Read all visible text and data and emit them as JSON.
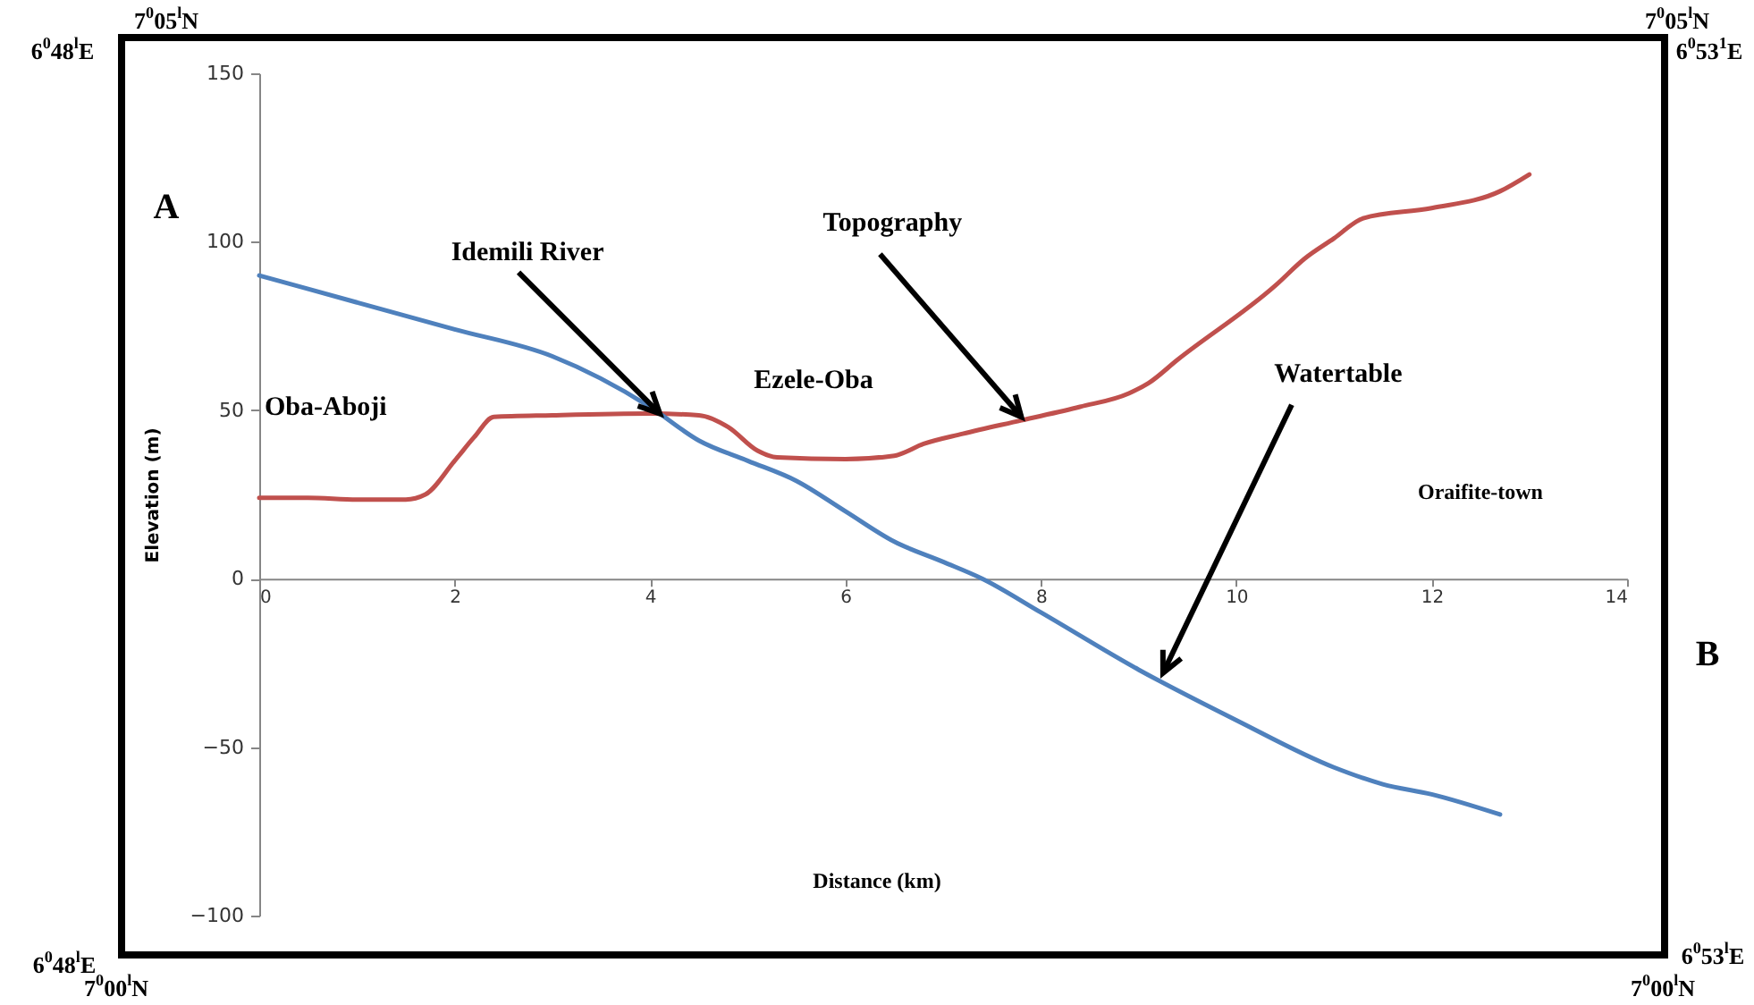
{
  "chart_data": {
    "type": "line",
    "xlabel": "Distance (km)",
    "ylabel": "Elevation  (m)",
    "xlim": [
      0,
      14
    ],
    "ylim": [
      -100,
      150
    ],
    "xticks": [
      0,
      2,
      4,
      6,
      8,
      10,
      12,
      14
    ],
    "yticks": [
      -100,
      -50,
      0,
      50,
      100,
      150
    ],
    "series": [
      {
        "color": "#c0504d",
        "x": [
          0,
          0.5,
          1,
          1.5,
          1.7,
          2.0,
          2.2,
          2.4,
          3,
          4,
          4.5,
          4.8,
          5.1,
          5.3,
          6,
          6.5,
          6.8,
          7.2,
          7.8,
          8.4,
          8.9,
          9.1,
          9.4,
          10.4,
          10.7,
          11,
          11.3,
          12,
          12.7,
          13
        ],
        "values": [
          24,
          24,
          23.5,
          23.5,
          25,
          35,
          42,
          48,
          48.5,
          49,
          48.5,
          45,
          38,
          36,
          35.5,
          36.5,
          40,
          43,
          47,
          51,
          55,
          58,
          65,
          87,
          95,
          101,
          107,
          110,
          115,
          120
        ]
      },
      {
        "color": "#4f81bd",
        "x": [
          0,
          1,
          2,
          3,
          4,
          4.5,
          5,
          5.5,
          6,
          6.5,
          7,
          7.4,
          8,
          9,
          10,
          11,
          11.5,
          12,
          12.7
        ],
        "values": [
          90,
          82,
          74,
          66,
          51,
          41,
          35,
          29,
          20,
          11,
          5,
          0,
          -10,
          -27,
          -42,
          -56,
          -61,
          -64,
          -70
        ]
      }
    ],
    "annotations": [
      "7$^{0}$05$^{l}$N",
      "6$^{0}$48$^{l}$E",
      "7$^{0}$05$^{l}$N",
      "6$^{0}$53$^{1}$E",
      "6$^{0}$48$^{l}$E",
      "7$^{0}$00$^{l}$N",
      "6$^{0}$53$^{l}$E",
      "7$^{0}$00$^{l}$N",
      "A",
      "B",
      "Oba-Aboji",
      {
        "text": "Idemili River",
        "x": 4.1,
        "y": 49
      },
      "Ezele-Oba",
      {
        "text": "Topography",
        "x": 7.8,
        "y": 48
      },
      {
        "text": "Watertable",
        "x": 9.25,
        "y": -28
      },
      "Oraifite-town"
    ]
  }
}
